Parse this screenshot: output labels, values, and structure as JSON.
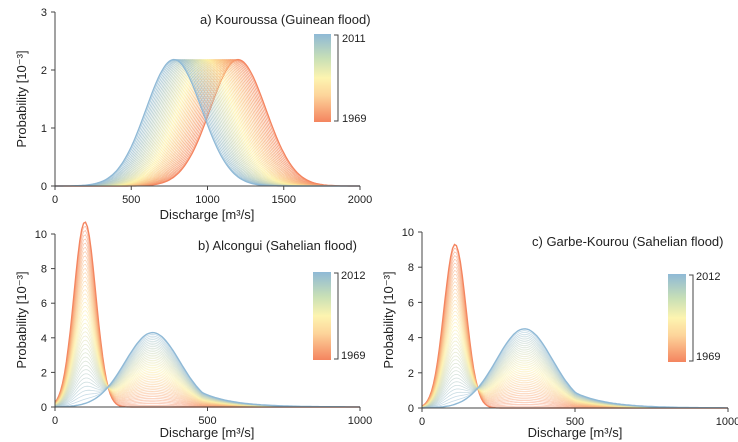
{
  "chart_data": [
    {
      "id": "a",
      "type": "line",
      "title": "a) Kouroussa (Guinean flood)",
      "xlabel": "Discharge [m³/s]",
      "ylabel": "Probability [10⁻³]",
      "xlim": [
        0,
        2000
      ],
      "ylim": [
        0,
        3
      ],
      "xticks": [
        0,
        500,
        1000,
        1500,
        2000
      ],
      "yticks": [
        0,
        1,
        2,
        3
      ],
      "colorbar": {
        "min_label": "1969",
        "max_label": "2011"
      },
      "legend_position": "top-right",
      "grid": false,
      "curve_family": {
        "shape": "normal",
        "count": 43,
        "years": [
          1969,
          2011
        ],
        "peak": 2.18,
        "mean_start": 1200,
        "mean_end": 780,
        "sd": 183
      },
      "series": [
        {
          "label": "1969",
          "peak_x": 1200,
          "peak_y": 2.18
        },
        {
          "label": "2011",
          "peak_x": 780,
          "peak_y": 2.18
        }
      ]
    },
    {
      "id": "b",
      "type": "line",
      "title": "b) Alcongui (Sahelian flood)",
      "xlabel": "Discharge [m³/s]",
      "ylabel": "Probability [10⁻³]",
      "xlim": [
        0,
        1000
      ],
      "ylim": [
        0,
        10
      ],
      "xticks": [
        0,
        500,
        1000
      ],
      "yticks": [
        0,
        2,
        4,
        6,
        8,
        10
      ],
      "colorbar": {
        "min_label": "1969",
        "max_label": "2012"
      },
      "legend_position": "right",
      "grid": false,
      "curve_family": {
        "shape": "mixture",
        "count": 44,
        "years": [
          1969,
          2012
        ],
        "start": {
          "mu": 98,
          "sd": 36,
          "peak": 10.7
        },
        "end": {
          "mu": 320,
          "sd": 90,
          "peak": 4.3
        }
      },
      "series": [
        {
          "label": "1969",
          "peak_x": 98,
          "peak_y": 10.7
        },
        {
          "label": "2012",
          "peak_x": 320,
          "peak_y": 4.3
        }
      ]
    },
    {
      "id": "c",
      "type": "line",
      "title": "c) Garbe-Kourou (Sahelian flood)",
      "xlabel": "Discharge [m³/s]",
      "ylabel": "Probability [10⁻³]",
      "xlim": [
        0,
        1000
      ],
      "ylim": [
        0,
        10
      ],
      "xticks": [
        0,
        500,
        1000
      ],
      "yticks": [
        0,
        2,
        4,
        6,
        8,
        10
      ],
      "colorbar": {
        "min_label": "1969",
        "max_label": "2012"
      },
      "legend_position": "right",
      "grid": false,
      "curve_family": {
        "shape": "mixture",
        "count": 44,
        "years": [
          1969,
          2012
        ],
        "start": {
          "mu": 108,
          "sd": 36,
          "peak": 9.3
        },
        "end": {
          "mu": 335,
          "sd": 92,
          "peak": 4.5
        }
      },
      "series": [
        {
          "label": "1969",
          "peak_x": 108,
          "peak_y": 9.3
        },
        {
          "label": "2012",
          "peak_x": 335,
          "peak_y": 4.5
        }
      ]
    }
  ],
  "colors": {
    "start": "#f4845f",
    "mid": "#fdf0a0",
    "end": "#8fb9d6",
    "axis": "#444444"
  }
}
